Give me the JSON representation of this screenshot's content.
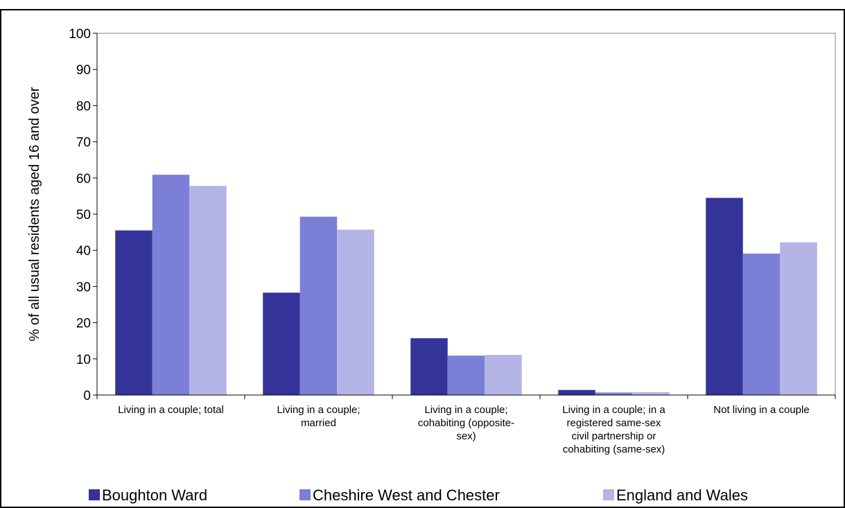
{
  "chart_data": {
    "type": "bar",
    "categories": [
      [
        "Living in a couple; total"
      ],
      [
        "Living in a couple;",
        "married"
      ],
      [
        "Living in a couple;",
        "cohabiting (opposite-",
        "sex)"
      ],
      [
        "Living in a couple; in a",
        "registered same-sex",
        "civil partnership or",
        "cohabiting (same-sex)"
      ],
      [
        "Not living in a couple"
      ]
    ],
    "series": [
      {
        "name": "Boughton Ward",
        "color": "#333399",
        "values": [
          45.5,
          28.3,
          15.7,
          1.4,
          54.5
        ]
      },
      {
        "name": "Cheshire West and Chester",
        "color": "#7b7fd6",
        "values": [
          60.9,
          49.3,
          10.9,
          0.7,
          39.1
        ]
      },
      {
        "name": "England and Wales",
        "color": "#b4b4e6",
        "values": [
          57.8,
          45.7,
          11.1,
          0.8,
          42.2
        ]
      }
    ],
    "ylabel": "% of all usual residents aged 16 and over",
    "ylim": [
      0,
      100
    ],
    "yticks": [
      0,
      10,
      20,
      30,
      40,
      50,
      60,
      70,
      80,
      90,
      100
    ],
    "grid": false,
    "legend": "bottom"
  }
}
